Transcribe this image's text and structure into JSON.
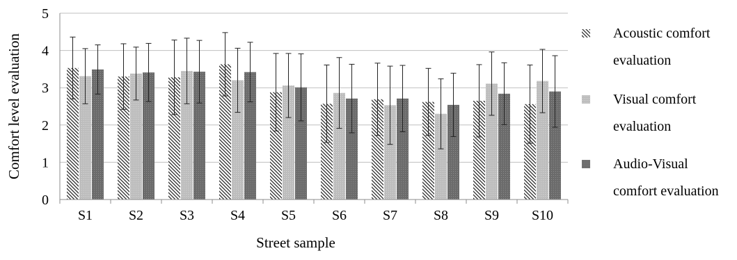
{
  "chart_data": {
    "type": "bar",
    "xlabel": "Street sample",
    "ylabel": "Comfort level evaluation",
    "ylim": [
      0,
      5
    ],
    "yticks": [
      "0",
      "1",
      "2",
      "3",
      "4",
      "5"
    ],
    "grid": true,
    "legend_position": "right",
    "categories": [
      "S1",
      "S2",
      "S3",
      "S4",
      "S5",
      "S6",
      "S7",
      "S8",
      "S9",
      "S10"
    ],
    "series": [
      {
        "name": "Acoustic comfort evaluation",
        "legend_lines": [
          "Acoustic comfort",
          "evaluation"
        ],
        "pattern": "diagonal-hatch",
        "color": "#333333",
        "values": [
          3.53,
          3.3,
          3.28,
          3.63,
          2.88,
          2.57,
          2.69,
          2.62,
          2.65,
          2.56
        ],
        "errors": [
          0.83,
          0.88,
          1.0,
          0.85,
          1.04,
          1.04,
          0.97,
          0.9,
          0.97,
          1.05
        ]
      },
      {
        "name": "Visual comfort evaluation",
        "legend_lines": [
          "Visual comfort",
          "evaluation"
        ],
        "pattern": "light-dotted",
        "color": "#b8b8b8",
        "values": [
          3.31,
          3.38,
          3.45,
          3.2,
          3.06,
          2.86,
          2.53,
          2.3,
          3.11,
          3.18
        ],
        "errors": [
          0.74,
          0.71,
          0.88,
          0.86,
          0.86,
          0.95,
          1.05,
          0.94,
          0.85,
          0.85
        ]
      },
      {
        "name": "Audio-Visual comfort evaluation",
        "legend_lines": [
          "Audio-Visual",
          "comfort evaluation"
        ],
        "pattern": "dark-dotted",
        "color": "#6e6e6e",
        "values": [
          3.49,
          3.41,
          3.43,
          3.42,
          3.01,
          2.71,
          2.71,
          2.54,
          2.84,
          2.9
        ],
        "errors": [
          0.66,
          0.78,
          0.84,
          0.8,
          0.9,
          0.92,
          0.89,
          0.85,
          0.83,
          0.96
        ]
      }
    ]
  }
}
